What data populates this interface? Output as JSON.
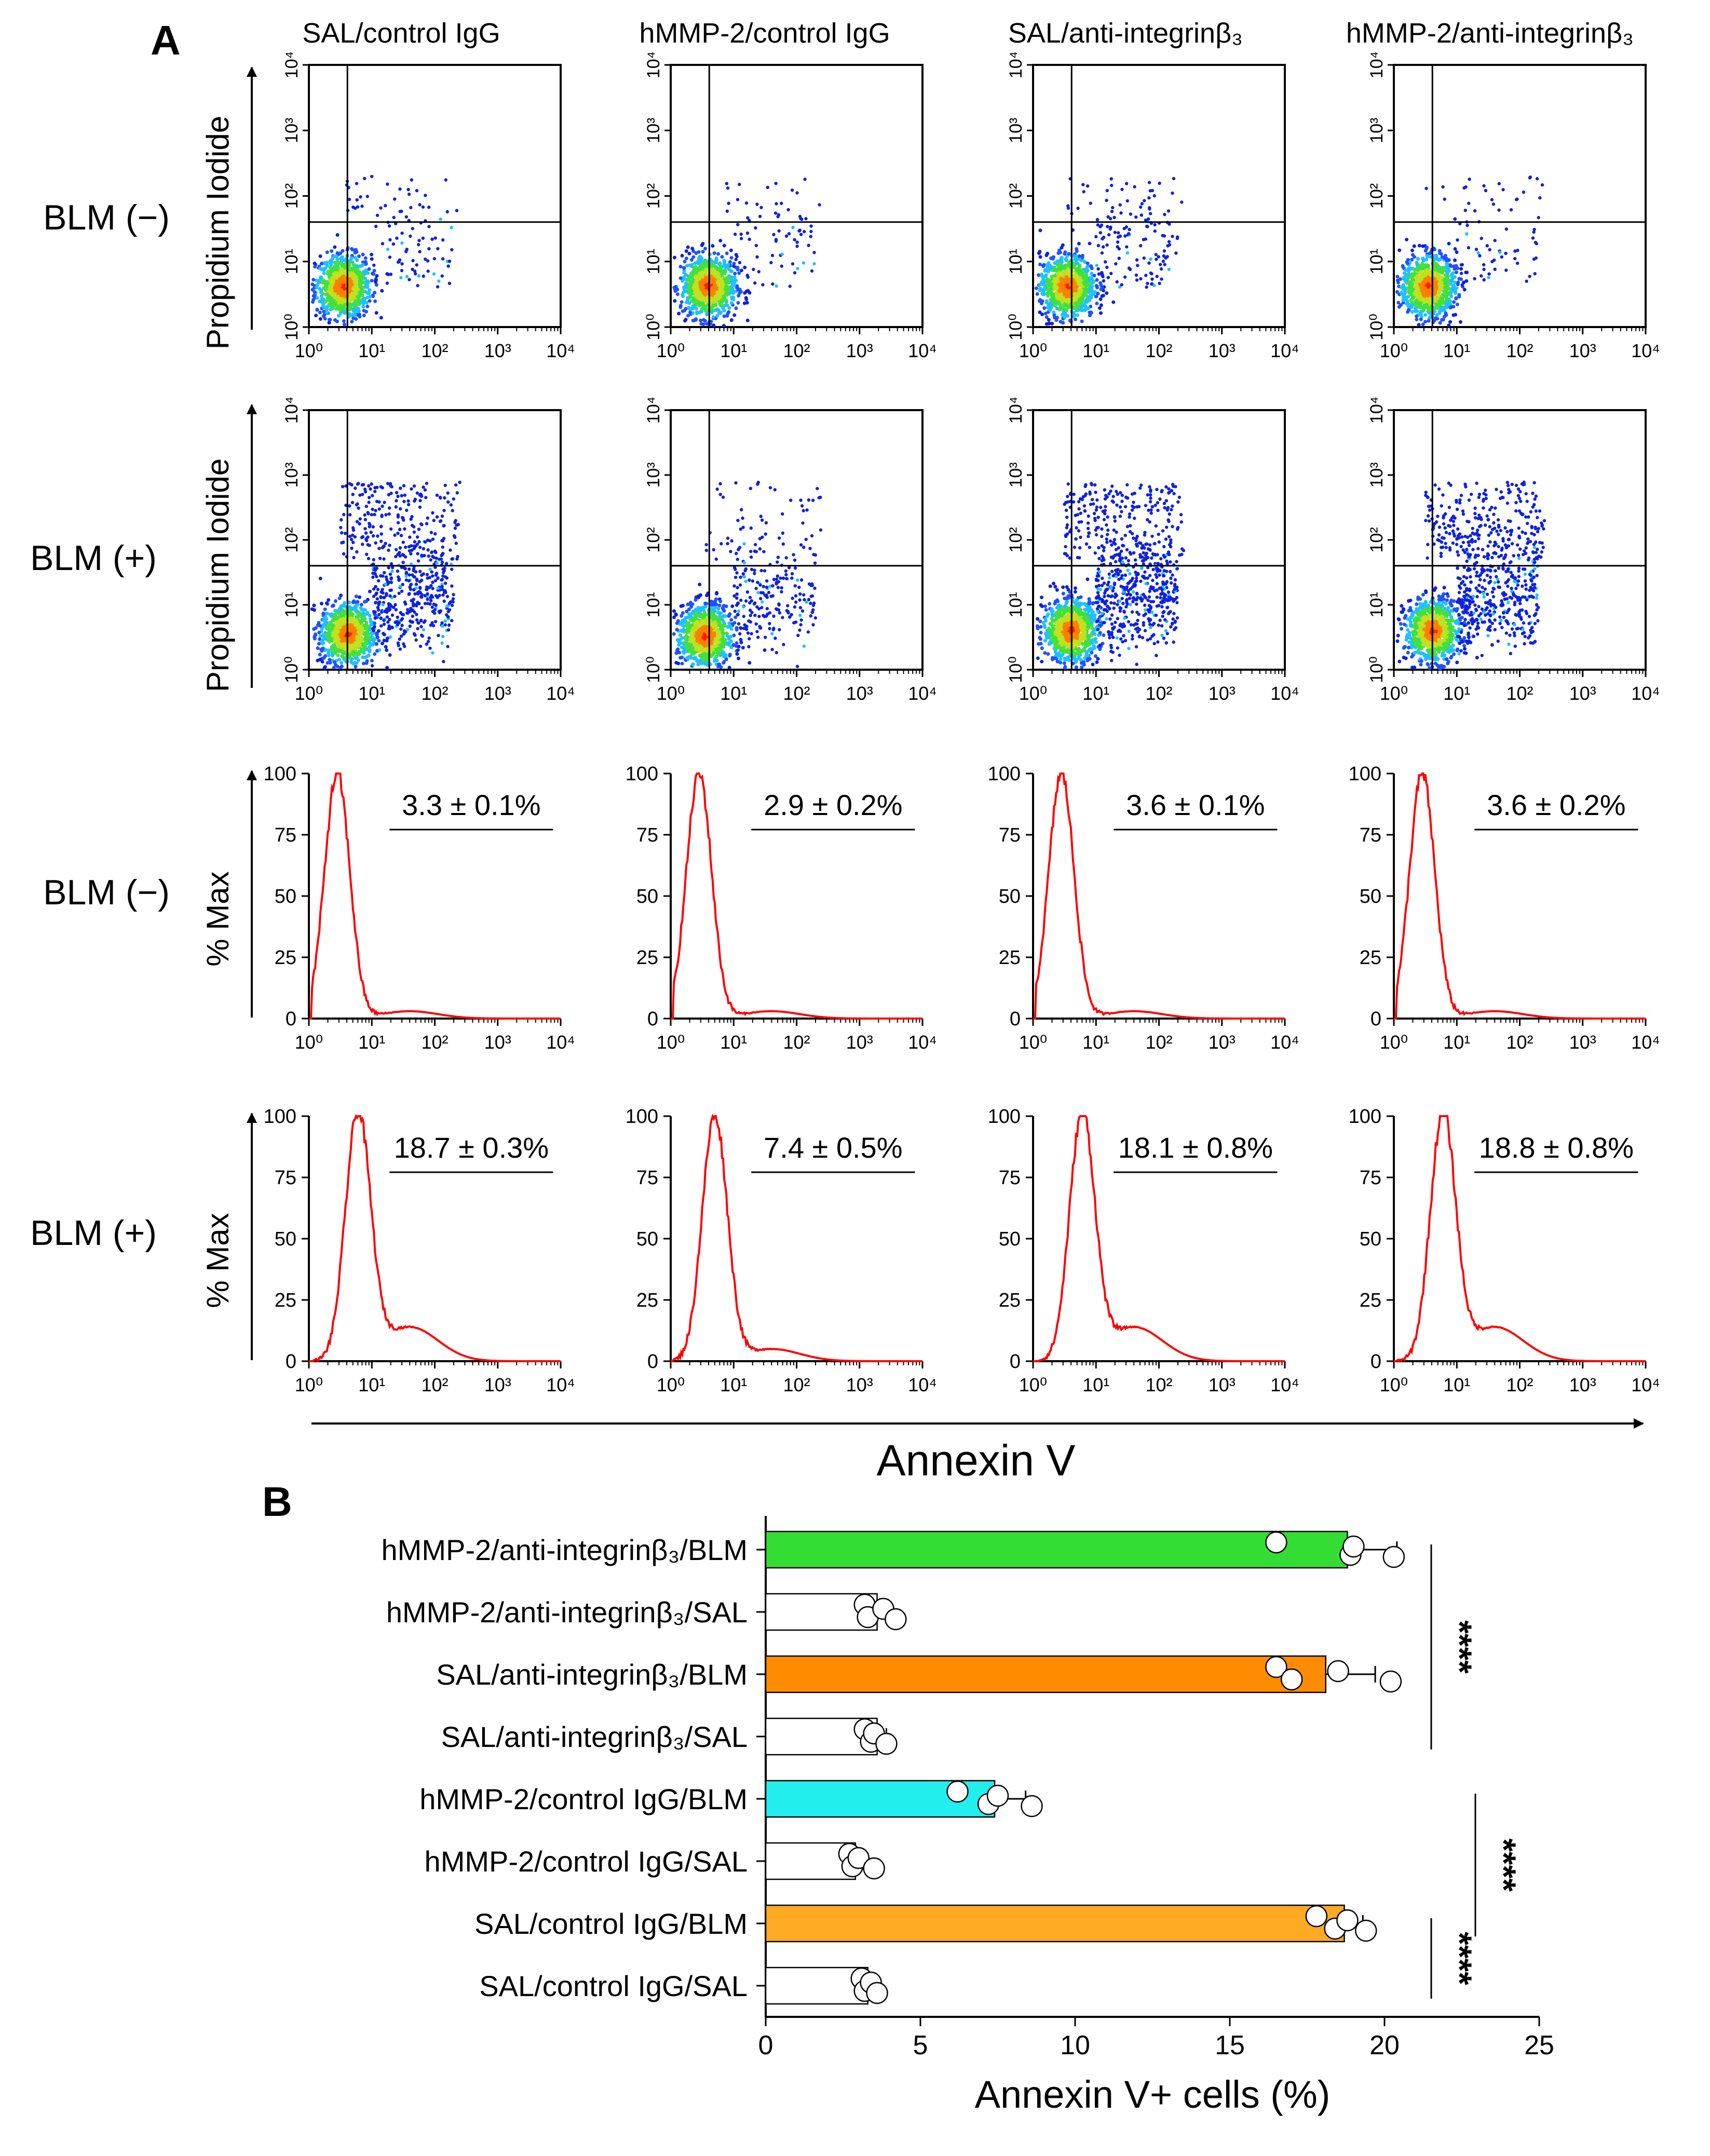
{
  "panel_a": {
    "letter": "A",
    "columns": [
      "SAL/control IgG",
      "hMMP-2/control IgG",
      "SAL/anti-integrinβ₃",
      "hMMP-2/anti-integrinβ₃"
    ],
    "rows": [
      "BLM (−)",
      "BLM (+)",
      "BLM (−)",
      "BLM (+)"
    ],
    "dot_plot_ylabel": "Propidium Iodide",
    "hist_ylabel": "% Max",
    "xlabel": "Annexin V",
    "log_ticks": [
      "10⁰",
      "10¹",
      "10²",
      "10³",
      "10⁴"
    ],
    "log_tick_values": [
      1,
      10,
      100,
      1000,
      10000
    ],
    "hist_yticks": [
      "0",
      "25",
      "50",
      "75",
      "100"
    ],
    "hist_ytick_values": [
      0,
      25,
      50,
      75,
      100
    ],
    "hist_annotations": [
      [
        "3.3 ± 0.1%",
        "2.9 ± 0.2%",
        "3.6 ± 0.1%",
        "3.6 ± 0.2%"
      ],
      [
        "18.7 ± 0.3%",
        "7.4 ± 0.5%",
        "18.1 ± 0.8%",
        "18.8 ± 0.8%"
      ]
    ],
    "dot_colors": [
      "#1020e0",
      "#2050ff",
      "#20c0ff",
      "#40e040",
      "#c0e020",
      "#ff8000",
      "#ff2000"
    ],
    "hist_color": "#ff0000"
  },
  "panel_b": {
    "letter": "B"
  },
  "chart_data": {
    "type": "bar",
    "orientation": "horizontal",
    "categories": [
      "hMMP-2/anti-integrinβ₃/BLM",
      "hMMP-2/anti-integrinβ₃/SAL",
      "SAL/anti-integrinβ₃/BLM",
      "SAL/anti-integrinβ₃/SAL",
      "hMMP-2/control IgG/BLM",
      "hMMP-2/control IgG/SAL",
      "SAL/control IgG/BLM",
      "SAL/control IgG/SAL"
    ],
    "values": [
      18.8,
      3.6,
      18.1,
      3.6,
      7.4,
      2.9,
      18.7,
      3.3
    ],
    "errors": [
      1.6,
      0.4,
      1.6,
      0.3,
      1.0,
      0.4,
      0.6,
      0.2
    ],
    "points": [
      [
        16.5,
        18.9,
        19.0,
        20.3
      ],
      [
        3.2,
        3.3,
        3.8,
        4.2
      ],
      [
        16.5,
        17.0,
        18.5,
        20.2
      ],
      [
        3.2,
        3.4,
        3.5,
        3.9
      ],
      [
        6.2,
        7.2,
        7.5,
        8.6
      ],
      [
        2.7,
        2.8,
        3.0,
        3.5
      ],
      [
        17.8,
        18.4,
        18.8,
        19.4
      ],
      [
        3.1,
        3.2,
        3.4,
        3.6
      ]
    ],
    "colors": [
      "#33dd33",
      "#ffffff",
      "#ff8c00",
      "#ffffff",
      "#22eeee",
      "#ffffff",
      "#ffaa22",
      "#ffffff"
    ],
    "xlim": [
      0,
      25
    ],
    "xticks": [
      "0",
      "5",
      "10",
      "15",
      "20",
      "25"
    ],
    "xtick_values": [
      0,
      5,
      10,
      15,
      20,
      25
    ],
    "xlabel": "Annexin V+ cells (%)",
    "significance": [
      {
        "label": "****",
        "from": 0,
        "to": 3
      },
      {
        "label": "****",
        "from": 4,
        "to": 6
      },
      {
        "label": "****",
        "from": 6,
        "to": 7
      }
    ]
  }
}
